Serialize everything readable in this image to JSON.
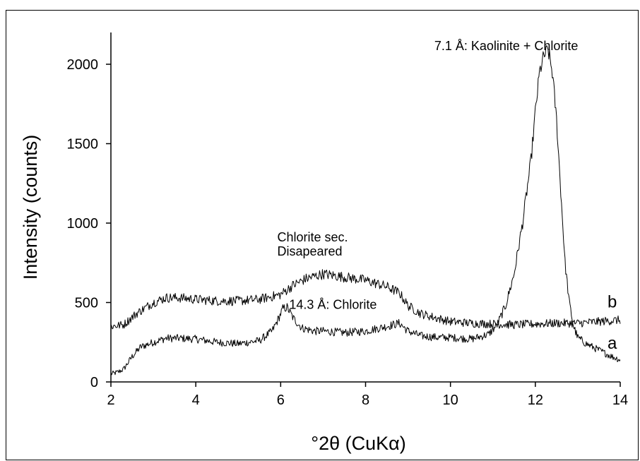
{
  "chart_data": {
    "type": "line",
    "xlabel": "°2θ (CuKα)",
    "ylabel": "Intensity (counts)",
    "xlim": [
      2,
      14
    ],
    "ylim": [
      0,
      2200
    ],
    "xticks": [
      "2",
      "4",
      "6",
      "8",
      "10",
      "12",
      "14"
    ],
    "yticks": [
      "0",
      "500",
      "1000",
      "1500",
      "2000"
    ],
    "grid": false,
    "colors": {
      "line": "#000000",
      "axis": "#000000"
    },
    "series": [
      {
        "name": "a",
        "x": [
          2.0,
          2.15,
          2.3,
          2.5,
          2.7,
          3.0,
          3.3,
          3.6,
          4.0,
          4.5,
          5.0,
          5.5,
          5.8,
          5.95,
          6.05,
          6.15,
          6.3,
          6.5,
          6.8,
          7.0,
          7.5,
          8.0,
          8.5,
          8.8,
          9.0,
          9.3,
          9.7,
          10.0,
          10.5,
          10.9,
          11.1,
          11.3,
          11.5,
          11.7,
          11.9,
          12.0,
          12.1,
          12.2,
          12.3,
          12.4,
          12.5,
          12.6,
          12.7,
          12.8,
          12.9,
          13.0,
          13.2,
          13.5,
          13.8,
          14.0
        ],
        "y": [
          50,
          60,
          80,
          160,
          220,
          250,
          275,
          275,
          270,
          250,
          240,
          260,
          320,
          400,
          460,
          470,
          400,
          340,
          320,
          320,
          310,
          320,
          350,
          370,
          320,
          290,
          280,
          280,
          270,
          300,
          360,
          480,
          680,
          1000,
          1400,
          1700,
          1950,
          2050,
          2090,
          1950,
          1650,
          1200,
          750,
          500,
          350,
          280,
          240,
          200,
          160,
          140
        ]
      },
      {
        "name": "b",
        "x": [
          2.0,
          2.3,
          2.6,
          3.0,
          3.3,
          3.6,
          4.0,
          4.5,
          5.0,
          5.5,
          6.0,
          6.3,
          6.6,
          7.0,
          7.5,
          8.0,
          8.5,
          8.8,
          9.0,
          9.3,
          9.7,
          10.0,
          10.5,
          11.0,
          11.5,
          12.0,
          12.5,
          13.0,
          13.5,
          14.0
        ],
        "y": [
          350,
          360,
          430,
          500,
          530,
          530,
          520,
          510,
          510,
          520,
          550,
          610,
          650,
          680,
          660,
          640,
          600,
          560,
          480,
          430,
          400,
          380,
          370,
          365,
          360,
          365,
          370,
          370,
          380,
          390
        ]
      }
    ],
    "annotations": [
      {
        "text": "7.1 Å: Kaolinite + Chlorite",
        "x": 9.62,
        "y": 2090
      },
      {
        "text": "14.3 Å: Chlorite",
        "x": 6.2,
        "y": 460
      },
      {
        "text": "Chlorite sec.",
        "x": 5.92,
        "y": 885
      },
      {
        "text": "Disapeared",
        "x": 5.92,
        "y": 795
      }
    ],
    "series_labels": [
      {
        "text": "b",
        "x": 13.7,
        "y": 470
      },
      {
        "text": "a",
        "x": 13.7,
        "y": 210
      }
    ]
  }
}
